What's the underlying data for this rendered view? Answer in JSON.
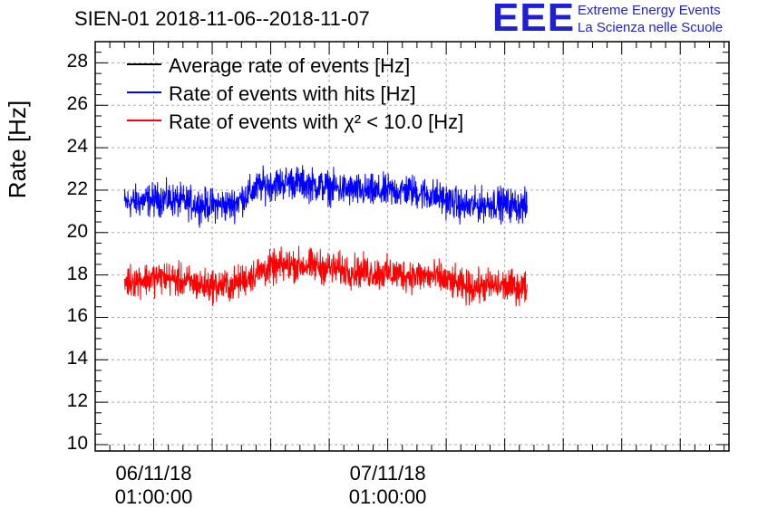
{
  "title": "SIEN-01 2018-11-06--2018-11-07",
  "logo": {
    "mark": "EEE",
    "line1": "Extreme Energy Events",
    "line2": "La Scienza nelle Scuole",
    "color": "#1f1fd6"
  },
  "chart_data": {
    "type": "line",
    "title": "SIEN-01 2018-11-06--2018-11-07",
    "ylabel": "Rate [Hz]",
    "xlabel": "",
    "ylim": [
      9.7,
      29
    ],
    "yticks": [
      "10",
      "12",
      "14",
      "16",
      "18",
      "20",
      "22",
      "24",
      "26",
      "28"
    ],
    "xlim_hours": [
      -5.0,
      60.0
    ],
    "xticks": [
      {
        "date": "06/11/18",
        "time": "01:00:00",
        "hour": 1
      },
      {
        "date": "07/11/18",
        "time": "01:00:00",
        "hour": 25
      }
    ],
    "data_hour_range": [
      -2.0,
      39.3
    ],
    "grid": true,
    "series": [
      {
        "name": "Average rate of events [Hz]",
        "color": "#000000",
        "values": []
      },
      {
        "name": "Rate of events with hits [Hz]",
        "color": "#0000ff",
        "baseline": [
          {
            "hour": -2,
            "value": 21.4
          },
          {
            "hour": 2,
            "value": 21.6
          },
          {
            "hour": 6,
            "value": 21.3
          },
          {
            "hour": 9,
            "value": 21.3
          },
          {
            "hour": 12,
            "value": 22.2
          },
          {
            "hour": 15,
            "value": 22.4
          },
          {
            "hour": 18,
            "value": 22.2
          },
          {
            "hour": 21,
            "value": 22.0
          },
          {
            "hour": 24,
            "value": 21.9
          },
          {
            "hour": 27,
            "value": 22.0
          },
          {
            "hour": 30,
            "value": 21.7
          },
          {
            "hour": 33,
            "value": 21.2
          },
          {
            "hour": 36,
            "value": 21.4
          },
          {
            "hour": 39.3,
            "value": 21.2
          }
        ],
        "spread": 0.55
      },
      {
        "name": "Rate of events with χ² < 10.0 [Hz]",
        "color": "#ff0000",
        "baseline": [
          {
            "hour": -2,
            "value": 17.7
          },
          {
            "hour": 2,
            "value": 17.9
          },
          {
            "hour": 6,
            "value": 17.5
          },
          {
            "hour": 9,
            "value": 17.5
          },
          {
            "hour": 12,
            "value": 18.2
          },
          {
            "hour": 15,
            "value": 18.5
          },
          {
            "hour": 18,
            "value": 18.4
          },
          {
            "hour": 21,
            "value": 18.2
          },
          {
            "hour": 24,
            "value": 18.1
          },
          {
            "hour": 27,
            "value": 18.0
          },
          {
            "hour": 30,
            "value": 17.9
          },
          {
            "hour": 33,
            "value": 17.4
          },
          {
            "hour": 36,
            "value": 17.5
          },
          {
            "hour": 39.3,
            "value": 17.4
          }
        ],
        "spread": 0.55
      }
    ]
  }
}
